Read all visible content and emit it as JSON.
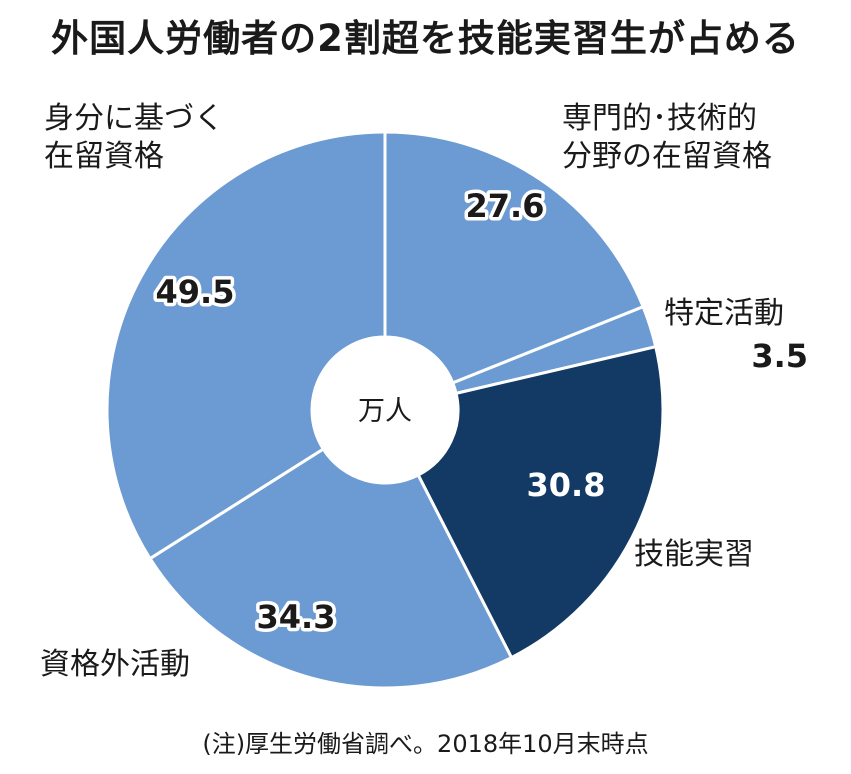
{
  "title": "外国人労働者の2割超を技能実習生が占める",
  "note": "(注)厚生労働省調べ。2018年10月末時点",
  "chart_data": {
    "type": "pie",
    "style": "donut",
    "center_label": "万人",
    "colors": {
      "default": "#6b9bd2",
      "highlight": "#123a64",
      "separator": "#ffffff"
    },
    "slices": [
      {
        "name": "専門的・技術的分野の在留資格",
        "label_lines": [
          "専門的･技術的",
          "分野の在留資格"
        ],
        "value": 27.6,
        "value_text": "27.6",
        "highlight": false
      },
      {
        "name": "特定活動",
        "label_lines": [
          "特定活動"
        ],
        "value": 3.5,
        "value_text": "3.5",
        "highlight": false
      },
      {
        "name": "技能実習",
        "label_lines": [
          "技能実習"
        ],
        "value": 30.8,
        "value_text": "30.8",
        "highlight": true
      },
      {
        "name": "資格外活動",
        "label_lines": [
          "資格外活動"
        ],
        "value": 34.3,
        "value_text": "34.3",
        "highlight": false
      },
      {
        "name": "身分に基づく在留資格",
        "label_lines": [
          "身分に基づく",
          "在留資格"
        ],
        "value": 49.5,
        "value_text": "49.5",
        "highlight": false
      }
    ]
  }
}
